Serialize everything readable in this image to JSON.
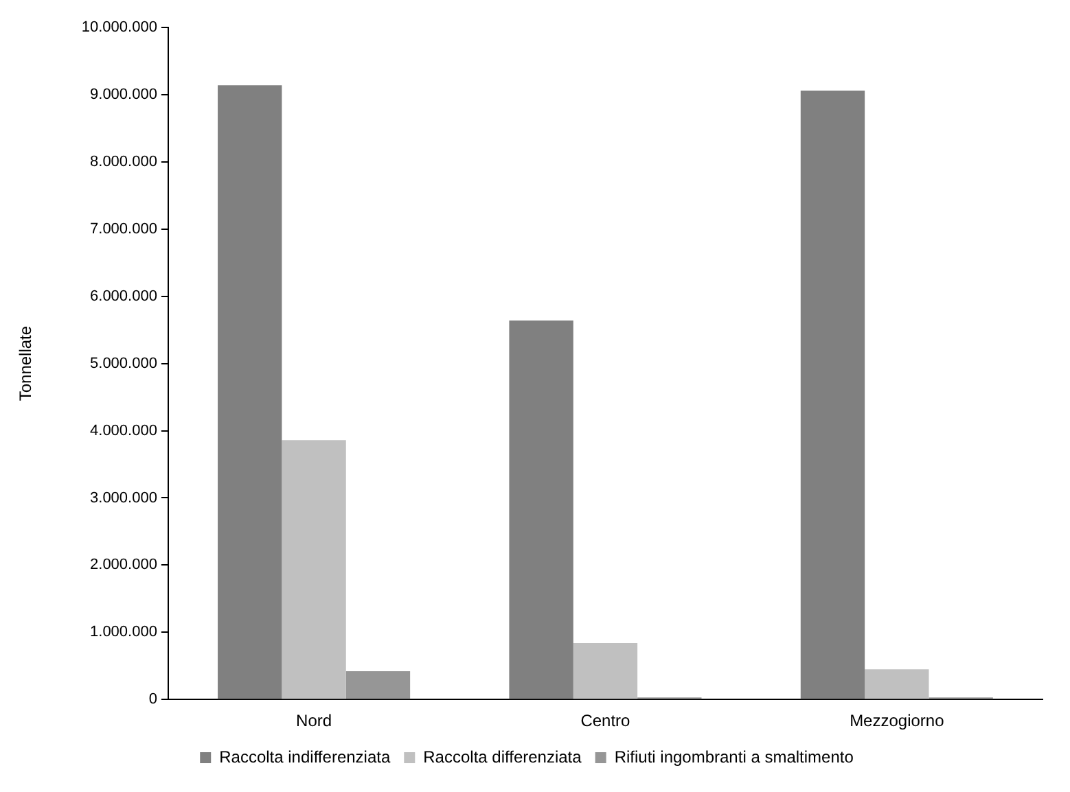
{
  "chart_data": {
    "type": "bar",
    "ylabel": "Tonnellate",
    "categories": [
      "Nord",
      "Centro",
      "Mezzogiorno"
    ],
    "series": [
      {
        "name": "Raccolta indifferenziata",
        "color": "#808080",
        "values": [
          9140000,
          5640000,
          9060000
        ]
      },
      {
        "name": "Raccolta differenziata",
        "color": "#c0c0c0",
        "values": [
          3860000,
          840000,
          450000
        ]
      },
      {
        "name": "Rifiuti ingombranti a smaltimento",
        "color": "#969696",
        "values": [
          420000,
          30000,
          30000
        ]
      }
    ],
    "ylim": [
      0,
      10000000
    ],
    "yticks": [
      {
        "value": 0,
        "label": "0"
      },
      {
        "value": 1000000,
        "label": "1.000.000"
      },
      {
        "value": 2000000,
        "label": "2.000.000"
      },
      {
        "value": 3000000,
        "label": "3.000.000"
      },
      {
        "value": 4000000,
        "label": "4.000.000"
      },
      {
        "value": 5000000,
        "label": "5.000.000"
      },
      {
        "value": 6000000,
        "label": "6.000.000"
      },
      {
        "value": 7000000,
        "label": "7.000.000"
      },
      {
        "value": 8000000,
        "label": "8.000.000"
      },
      {
        "value": 9000000,
        "label": "9.000.000"
      },
      {
        "value": 10000000,
        "label": "10.000.000"
      }
    ],
    "grid": false,
    "legend": "bottom"
  }
}
